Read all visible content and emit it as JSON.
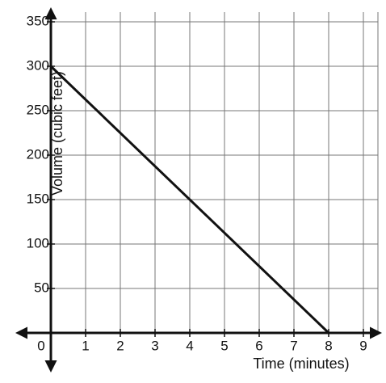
{
  "chart_data": {
    "type": "line",
    "x_label": "Time (minutes)",
    "y_label": "Volume (cubic feet)",
    "x": [
      0,
      8
    ],
    "series": [
      {
        "values": [
          300,
          0
        ],
        "color": "#111111"
      }
    ],
    "xlim": [
      0,
      9
    ],
    "ylim": [
      0,
      350
    ],
    "xticks": [
      0,
      1,
      2,
      3,
      4,
      5,
      6,
      7,
      8,
      9
    ],
    "yticks": [
      50,
      100,
      150,
      200,
      250,
      300,
      350
    ],
    "grid": true
  }
}
